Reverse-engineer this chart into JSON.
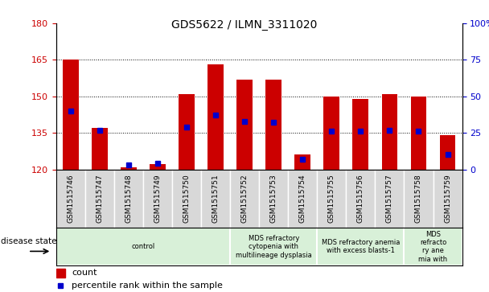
{
  "title": "GDS5622 / ILMN_3311020",
  "samples": [
    "GSM1515746",
    "GSM1515747",
    "GSM1515748",
    "GSM1515749",
    "GSM1515750",
    "GSM1515751",
    "GSM1515752",
    "GSM1515753",
    "GSM1515754",
    "GSM1515755",
    "GSM1515756",
    "GSM1515757",
    "GSM1515758",
    "GSM1515759"
  ],
  "counts": [
    165,
    137,
    121,
    122,
    151,
    163,
    157,
    157,
    126,
    150,
    149,
    151,
    150,
    134
  ],
  "percentiles": [
    40,
    27,
    3,
    4,
    29,
    37,
    33,
    32,
    7,
    26,
    26,
    27,
    26,
    10
  ],
  "y_min": 120,
  "y_max": 180,
  "y_ticks_left": [
    120,
    135,
    150,
    165,
    180
  ],
  "y_ticks_right": [
    0,
    25,
    50,
    75,
    100
  ],
  "bar_color": "#cc0000",
  "dot_color": "#0000cc",
  "tick_color_left": "#cc0000",
  "tick_color_right": "#0000cc",
  "disease_groups": [
    {
      "label": "control",
      "start": 0,
      "end": 6
    },
    {
      "label": "MDS refractory\ncytopenia with\nmultilineage dysplasia",
      "start": 6,
      "end": 9
    },
    {
      "label": "MDS refractory anemia\nwith excess blasts-1",
      "start": 9,
      "end": 12
    },
    {
      "label": "MDS\nrefracto\nry ane\nmia with",
      "start": 12,
      "end": 14
    }
  ],
  "disease_box_color": "#d8f0d8",
  "sample_box_color": "#d8d8d8",
  "legend_count_label": "count",
  "legend_percentile_label": "percentile rank within the sample",
  "disease_state_label": "disease state"
}
